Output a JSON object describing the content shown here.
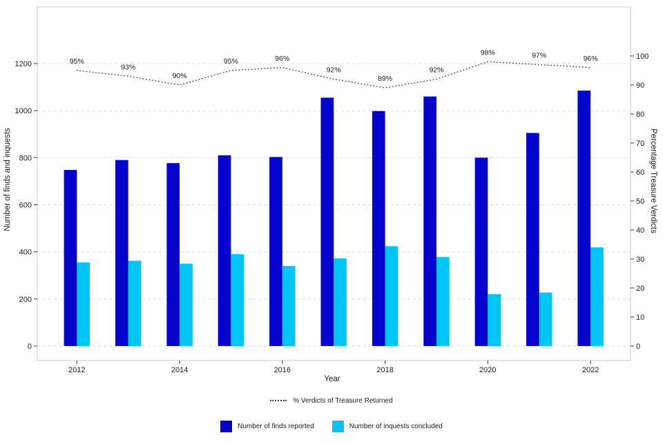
{
  "axes": {
    "x_title": "Year",
    "y_left_title": "Number of finds and inquests",
    "y_right_title": "Percentage Treasure Verdicts"
  },
  "legend": {
    "line": "% Verdicts of Treasure Returned",
    "bars": [
      {
        "label": "Number of finds reported",
        "color": "#0404CE"
      },
      {
        "label": "Number of inquests concluded",
        "color": "#00C6F7"
      }
    ]
  },
  "colors": {
    "finds": "#0404CE",
    "inquests": "#00C6F7",
    "pct_line": "#3d3d3d",
    "grid": "#DCDCDC",
    "panel_border": "#C8C8C8",
    "tick": "#333333",
    "text": "#1a1a1a"
  },
  "chart_data": {
    "type": "bar",
    "title": "",
    "xlabel": "Year",
    "ylabel": "Number of finds and inquests",
    "ylabel_right": "Percentage Treasure Verdicts",
    "x": [
      2012,
      2013,
      2014,
      2015,
      2016,
      2017,
      2018,
      2019,
      2020,
      2021,
      2022
    ],
    "x_ticks_shown": [
      2012,
      2014,
      2016,
      2018,
      2020,
      2022
    ],
    "left_axis": {
      "ticks": [
        0,
        200,
        400,
        600,
        800,
        1000,
        1200
      ],
      "lim": [
        0,
        1450
      ]
    },
    "right_axis": {
      "ticks": [
        0,
        10,
        20,
        30,
        40,
        50,
        60,
        70,
        80,
        90,
        100
      ],
      "lim": [
        0,
        117
      ]
    },
    "grid": "dashed-horizontal-major",
    "legend_position": "bottom",
    "series": [
      {
        "name": "Number of finds reported",
        "kind": "bar",
        "axis": "left",
        "color": "#0404CE",
        "values": [
          748,
          790,
          777,
          810,
          803,
          1055,
          998,
          1060,
          800,
          905,
          1085
        ]
      },
      {
        "name": "Number of inquests concluded",
        "kind": "bar",
        "axis": "left",
        "color": "#00C6F7",
        "values": [
          355,
          362,
          350,
          390,
          340,
          372,
          424,
          378,
          220,
          227,
          419
        ]
      },
      {
        "name": "% Verdicts of Treasure Returned",
        "kind": "line",
        "linestyle": "dotted",
        "axis": "right",
        "color": "#3d3d3d",
        "values": [
          95,
          93,
          90,
          95,
          96,
          92,
          89,
          92,
          98,
          97,
          96
        ],
        "labels": [
          "95%",
          "93%",
          "90%",
          "95%",
          "96%",
          "92%",
          "89%",
          "92%",
          "98%",
          "97%",
          "96%"
        ]
      }
    ]
  }
}
